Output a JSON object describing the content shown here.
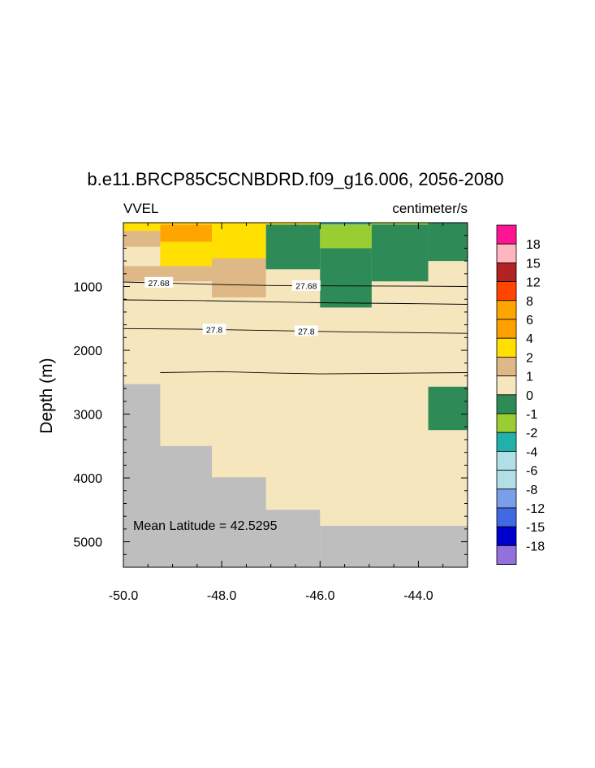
{
  "chart_data": {
    "type": "heatmap",
    "title": "b.e11.BRCP85C5CNBDRD.f09_g16.006, 2056-2080",
    "left_label": "VVEL",
    "right_label": "centimeter/s",
    "ylabel": "Depth (m)",
    "xlabel": "",
    "xlim": [
      -50.0,
      -43.0
    ],
    "ylim": [
      5400,
      0
    ],
    "y_reversed": true,
    "x_ticks": [
      -50.0,
      -48.0,
      -46.0,
      -44.0
    ],
    "x_tick_labels": [
      "-50.0",
      "-48.0",
      "-46.0",
      "-44.0"
    ],
    "y_ticks": [
      1000,
      2000,
      3000,
      4000,
      5000
    ],
    "y_tick_labels": [
      "1000",
      "2000",
      "3000",
      "4000",
      "5000"
    ],
    "annotation": "Mean Latitude = 42.5295",
    "missing_color": "#bebebe",
    "colorbar": {
      "labels": [
        "18",
        "15",
        "12",
        "8",
        "6",
        "4",
        "2",
        "1",
        "0",
        "-1",
        "-2",
        "-4",
        "-6",
        "-8",
        "-12",
        "-15",
        "-18"
      ],
      "colors": [
        "#ff1493",
        "#ffb6c1",
        "#b22222",
        "#ff4500",
        "#ffa500",
        "#ffa000",
        "#ffe000",
        "#deb887",
        "#f5e6be",
        "#2e8b57",
        "#9acd32",
        "#20b2aa",
        "#b0e0e6",
        "#b0e0e6",
        "#7b9ee8",
        "#4169e1",
        "#0000cd",
        "#9370db"
      ]
    },
    "cells": [
      {
        "x0": -50.0,
        "x1": -49.25,
        "y0": 0,
        "y1": 130,
        "color": "#ffe000"
      },
      {
        "x0": -50.0,
        "x1": -49.25,
        "y0": 130,
        "y1": 380,
        "color": "#deb887"
      },
      {
        "x0": -50.0,
        "x1": -49.25,
        "y0": 380,
        "y1": 680,
        "color": "#f5e6be"
      },
      {
        "x0": -50.0,
        "x1": -49.25,
        "y0": 680,
        "y1": 920,
        "color": "#deb887"
      },
      {
        "x0": -49.25,
        "x1": -48.2,
        "y0": 0,
        "y1": 30,
        "color": "#ffe000"
      },
      {
        "x0": -49.25,
        "x1": -48.2,
        "y0": 30,
        "y1": 300,
        "color": "#ffa500"
      },
      {
        "x0": -49.25,
        "x1": -48.2,
        "y0": 300,
        "y1": 680,
        "color": "#ffe000"
      },
      {
        "x0": -49.25,
        "x1": -48.2,
        "y0": 680,
        "y1": 920,
        "color": "#deb887"
      },
      {
        "x0": -48.2,
        "x1": -47.1,
        "y0": 0,
        "y1": 560,
        "color": "#ffe000"
      },
      {
        "x0": -48.2,
        "x1": -47.1,
        "y0": 560,
        "y1": 1170,
        "color": "#deb887"
      },
      {
        "x0": -47.1,
        "x1": -46.0,
        "y0": 0,
        "y1": 30,
        "color": "#ffe000"
      },
      {
        "x0": -47.1,
        "x1": -46.0,
        "y0": 30,
        "y1": 730,
        "color": "#2e8b57"
      },
      {
        "x0": -46.0,
        "x1": -44.95,
        "y0": 0,
        "y1": 30,
        "color": "#20b2aa"
      },
      {
        "x0": -46.0,
        "x1": -44.95,
        "y0": 30,
        "y1": 400,
        "color": "#9acd32"
      },
      {
        "x0": -46.0,
        "x1": -44.95,
        "y0": 400,
        "y1": 1330,
        "color": "#2e8b57"
      },
      {
        "x0": -44.95,
        "x1": -43.8,
        "y0": 0,
        "y1": 30,
        "color": "#9acd32"
      },
      {
        "x0": -44.95,
        "x1": -43.8,
        "y0": 30,
        "y1": 920,
        "color": "#2e8b57"
      },
      {
        "x0": -43.8,
        "x1": -43.0,
        "y0": 0,
        "y1": 600,
        "color": "#2e8b57"
      },
      {
        "x0": -43.8,
        "x1": -43.0,
        "y0": 2570,
        "y1": 3250,
        "color": "#2e8b57"
      }
    ],
    "missing_cells": [
      {
        "x0": -50.0,
        "x1": -49.25,
        "y0": 2530,
        "y1": 5400
      },
      {
        "x0": -49.25,
        "x1": -48.2,
        "y0": 3500,
        "y1": 5400
      },
      {
        "x0": -48.2,
        "x1": -47.1,
        "y0": 3990,
        "y1": 5400
      },
      {
        "x0": -47.1,
        "x1": -46.0,
        "y0": 4500,
        "y1": 5400
      },
      {
        "x0": -46.0,
        "x1": -43.0,
        "y0": 4750,
        "y1": 5400
      }
    ],
    "contours": [
      {
        "label": "27.68",
        "points": [
          [
            -50.0,
            930
          ],
          [
            -49.0,
            950
          ],
          [
            -48.0,
            970
          ],
          [
            -47.0,
            985
          ],
          [
            -46.0,
            990
          ],
          [
            -44.0,
            995
          ],
          [
            -43.0,
            1000
          ]
        ],
        "label_positions": [
          [
            -49.28,
            940
          ],
          [
            -46.28,
            990
          ]
        ]
      },
      {
        "label": "",
        "points": [
          [
            -50.0,
            1210
          ],
          [
            -48.5,
            1220
          ],
          [
            -47.0,
            1240
          ],
          [
            -46.0,
            1255
          ],
          [
            -44.0,
            1270
          ],
          [
            -43.0,
            1280
          ]
        ]
      },
      {
        "label": "27.8",
        "points": [
          [
            -50.0,
            1660
          ],
          [
            -48.5,
            1670
          ],
          [
            -47.0,
            1690
          ],
          [
            -45.5,
            1710
          ],
          [
            -44.0,
            1725
          ],
          [
            -43.0,
            1735
          ]
        ],
        "label_positions": [
          [
            -48.15,
            1675
          ],
          [
            -46.28,
            1700
          ]
        ]
      },
      {
        "label": "",
        "points": [
          [
            -49.25,
            2350
          ],
          [
            -48.0,
            2335
          ],
          [
            -47.0,
            2355
          ],
          [
            -46.0,
            2370
          ],
          [
            -44.5,
            2360
          ],
          [
            -43.0,
            2350
          ]
        ]
      }
    ]
  }
}
